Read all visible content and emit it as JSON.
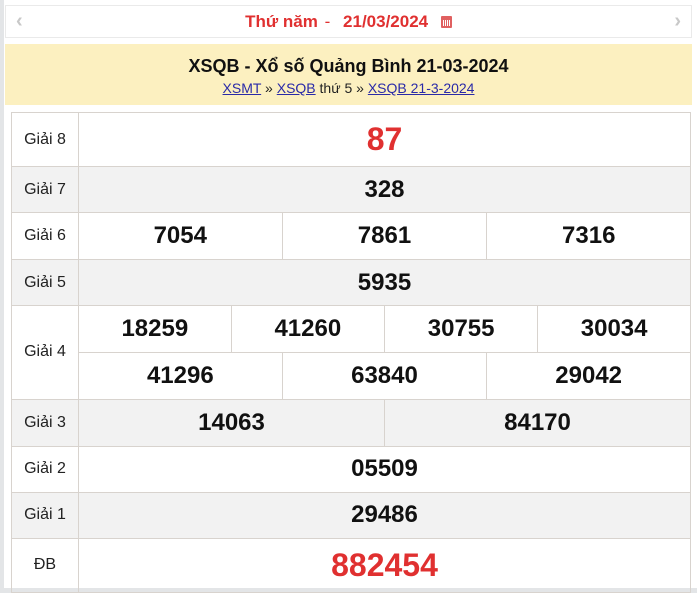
{
  "date_bar": {
    "weekday": "Thứ năm",
    "separator": "-",
    "date": "21/03/2024",
    "prev_icon": "chevron-left-icon",
    "next_icon": "chevron-right-icon",
    "calendar_icon": "calendar-icon",
    "prev": "‹",
    "next": "›"
  },
  "header": {
    "title": "XSQB - Xổ số Quảng Bình 21-03-2024",
    "breadcrumb": {
      "link1": "XSMT",
      "sep1": " » ",
      "link2": "XSQB",
      "text": " thứ 5 ",
      "sep2": "» ",
      "link3": "XSQB 21-3-2024"
    }
  },
  "results": {
    "g8": {
      "label": "Giải 8",
      "numbers": [
        "87"
      ]
    },
    "g7": {
      "label": "Giải 7",
      "numbers": [
        "328"
      ]
    },
    "g6": {
      "label": "Giải 6",
      "numbers": [
        "7054",
        "7861",
        "7316"
      ]
    },
    "g5": {
      "label": "Giải 5",
      "numbers": [
        "5935"
      ]
    },
    "g4": {
      "label": "Giải 4",
      "numbers": [
        "18259",
        "41260",
        "30755",
        "30034",
        "41296",
        "63840",
        "29042"
      ]
    },
    "g3": {
      "label": "Giải 3",
      "numbers": [
        "14063",
        "84170"
      ]
    },
    "g2": {
      "label": "Giải 2",
      "numbers": [
        "05509"
      ]
    },
    "g1": {
      "label": "Giải 1",
      "numbers": [
        "29486"
      ]
    },
    "db": {
      "label": "ĐB",
      "numbers": [
        "882454"
      ]
    }
  },
  "colors": {
    "accent": "#e03030",
    "header_bg": "#fcf0c0",
    "alt_row": "#f2f2f2"
  }
}
